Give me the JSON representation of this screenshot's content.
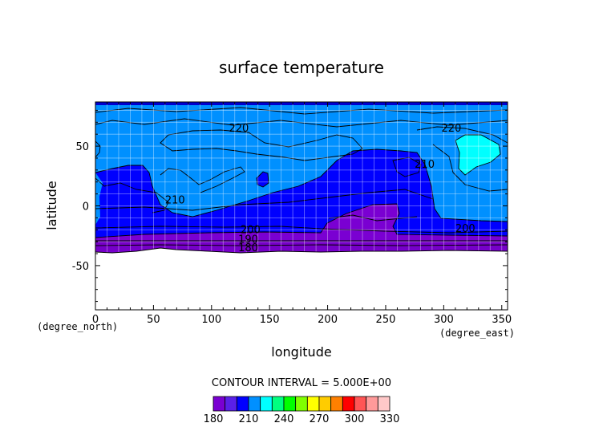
{
  "chart_data": {
    "type": "heatmap",
    "title": "surface temperature",
    "xlabel": "longitude",
    "ylabel": "latitude",
    "x_unit": "(degree_east)",
    "y_unit": "(degree_north)",
    "xlim": [
      0,
      355
    ],
    "ylim": [
      -87,
      87
    ],
    "x_ticks": [
      0,
      50,
      100,
      150,
      200,
      250,
      300,
      350
    ],
    "y_ticks": [
      -50,
      0,
      50
    ],
    "grid": true,
    "data_lat_range": [
      -40,
      87
    ],
    "contour_interval_text": "CONTOUR INTERVAL = 5.000E+00",
    "contour_labels": [
      {
        "text": "220",
        "lon": 115,
        "lat": 62
      },
      {
        "text": "220",
        "lon": 298,
        "lat": 62
      },
      {
        "text": "210",
        "lon": 60,
        "lat": 2
      },
      {
        "text": "210",
        "lon": 275,
        "lat": 32
      },
      {
        "text": "200",
        "lon": 310,
        "lat": -22
      },
      {
        "text": "200",
        "lon": 125,
        "lat": -23
      },
      {
        "text": "190",
        "lon": 123,
        "lat": -31
      },
      {
        "text": "180",
        "lon": 123,
        "lat": -38
      }
    ],
    "colorbar": {
      "tick_labels": [
        "180",
        "210",
        "240",
        "270",
        "300",
        "330"
      ],
      "min": 180,
      "max": 330,
      "step": 10,
      "colors": [
        "#7a00d2",
        "#5a20e8",
        "#0000ff",
        "#0090ff",
        "#00ffff",
        "#00ff80",
        "#00ff00",
        "#80ff00",
        "#ffff00",
        "#ffcc00",
        "#ff8000",
        "#ff0000",
        "#ff5555",
        "#ff9a9a",
        "#ffc8c8"
      ]
    },
    "fill_colors": {
      "190": "#8a00d8",
      "200": "#0000ff",
      "210": "#0090ff",
      "220": "#0090ff",
      "230": "#00ffff"
    }
  }
}
